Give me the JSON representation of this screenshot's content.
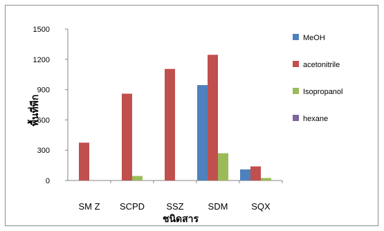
{
  "chart_data": {
    "type": "bar",
    "title": "",
    "xlabel": "ชนิดสาร",
    "ylabel": "พื้นที่พีก",
    "categories": [
      "SM Z",
      "SCPD",
      "SSZ",
      "SDM",
      "SQX"
    ],
    "ylim": [
      0,
      1500
    ],
    "yticks": [
      0,
      300,
      600,
      900,
      1200,
      1500
    ],
    "grid": false,
    "legend_position": "right",
    "series": [
      {
        "name": "MeOH",
        "color": "#4F81BD",
        "values": [
          0,
          0,
          0,
          945,
          110
        ]
      },
      {
        "name": "acetonitrile",
        "color": "#C0504D",
        "values": [
          375,
          860,
          1105,
          1245,
          140
        ]
      },
      {
        "name": "Isopropanol",
        "color": "#9BBB59",
        "values": [
          0,
          45,
          0,
          270,
          25
        ]
      },
      {
        "name": "hexane",
        "color": "#8064A2",
        "values": [
          0,
          0,
          0,
          0,
          0
        ]
      }
    ]
  }
}
